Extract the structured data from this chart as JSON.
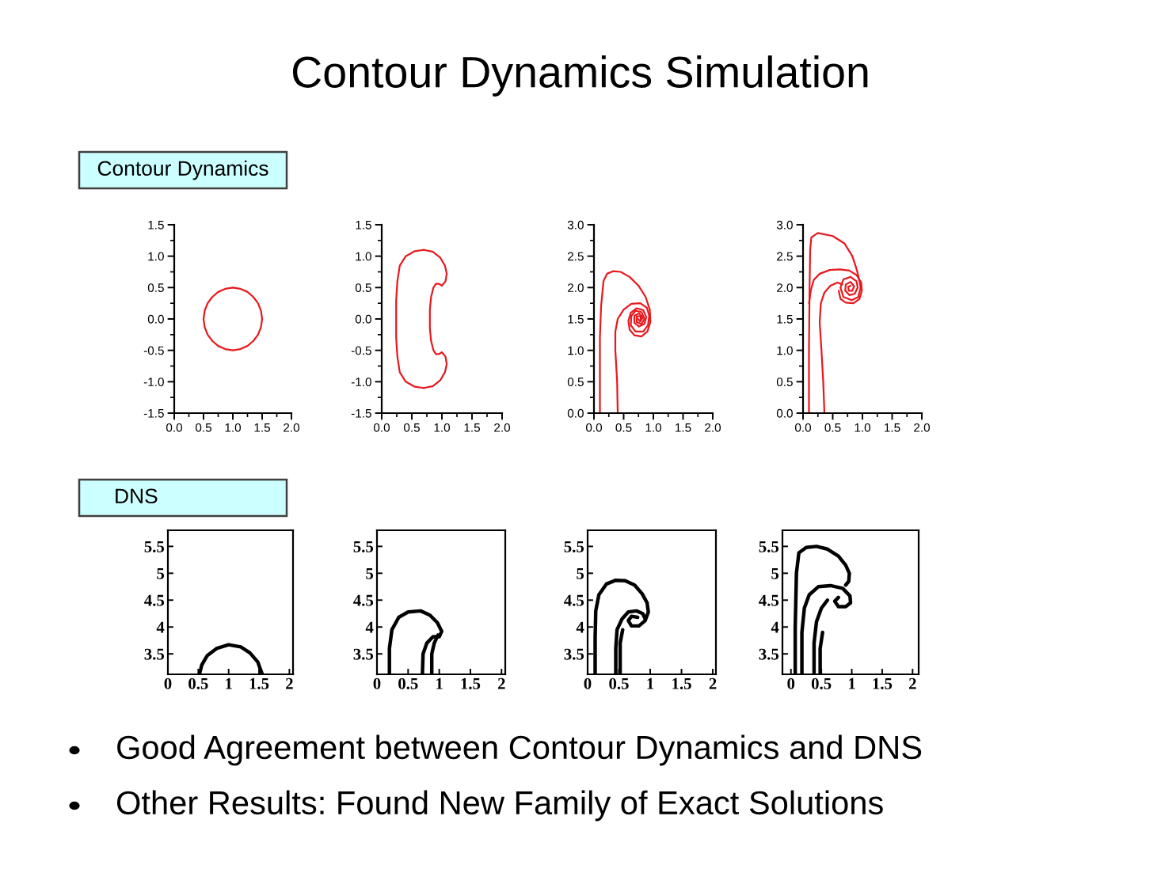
{
  "chart_data": [
    {
      "type": "other",
      "title": "Contour Dynamics Simulation"
    },
    {
      "type": "line",
      "title": "Contour Dynamics",
      "xlim": [
        0,
        2
      ],
      "ylim": [
        -1.5,
        1.5
      ],
      "xticks": [
        {
          "value": 0,
          "label": "0.0"
        },
        0.5,
        {
          "value": 1,
          "label": "1.0"
        },
        1.5,
        {
          "value": 2,
          "label": "2.0"
        }
      ],
      "yticks": [
        -1.5,
        {
          "value": -1,
          "label": "-1.0"
        },
        -0.5,
        {
          "value": 0,
          "label": "0.0"
        },
        0.5,
        {
          "value": 1,
          "label": "1.0"
        },
        1.5
      ],
      "series": [
        {
          "color": "#e8191e",
          "x": [
            1.5,
            1.48,
            1.43,
            1.35,
            1.25,
            1.13,
            1.0,
            0.87,
            0.75,
            0.65,
            0.57,
            0.52,
            0.5
          ],
          "values": [
            0,
            0.13,
            0.25,
            0.35,
            0.43,
            0.48,
            0.5,
            0.48,
            0.43,
            0.35,
            0.25,
            0.13,
            0
          ]
        },
        {
          "color": "#e8191e",
          "x": [
            0.5,
            0.52,
            0.57,
            0.65,
            0.75,
            0.87,
            1.0,
            1.13,
            1.25,
            1.35,
            1.43,
            1.48,
            1.5
          ],
          "values": [
            0,
            -0.13,
            -0.25,
            -0.35,
            -0.43,
            -0.48,
            -0.5,
            -0.48,
            -0.43,
            -0.35,
            -0.25,
            -0.13,
            0
          ]
        }
      ]
    },
    {
      "type": "line",
      "xlim": [
        0,
        2
      ],
      "ylim": [
        -1.5,
        1.5
      ],
      "xticks": [
        {
          "value": 0,
          "label": "0.0"
        },
        0.5,
        {
          "value": 1,
          "label": "1.0"
        },
        1.5,
        {
          "value": 2,
          "label": "2.0"
        }
      ],
      "yticks": [
        -1.5,
        {
          "value": -1,
          "label": "-1.0"
        },
        -0.5,
        {
          "value": 0,
          "label": "0.0"
        },
        0.5,
        {
          "value": 1,
          "label": "1.0"
        },
        1.5
      ],
      "series": [
        {
          "color": "#e8191e",
          "x": [
            0.7,
            0.85,
            0.97,
            1.05,
            1.08,
            1.06,
            1.0,
            0.95,
            0.9,
            0.86,
            0.82,
            0.8,
            0.8,
            0.8,
            0.82,
            0.86,
            0.9,
            0.95,
            1.0,
            1.06,
            1.08,
            1.05,
            0.97,
            0.85,
            0.7
          ],
          "values": [
            1.1,
            1.07,
            0.98,
            0.85,
            0.72,
            0.6,
            0.53,
            0.56,
            0.56,
            0.5,
            0.35,
            0.15,
            0,
            -0.15,
            -0.35,
            -0.5,
            -0.56,
            -0.56,
            -0.53,
            -0.6,
            -0.72,
            -0.85,
            -0.98,
            -1.07,
            -1.1
          ]
        },
        {
          "color": "#e8191e",
          "x": [
            0.7,
            0.55,
            0.4,
            0.3,
            0.26,
            0.24,
            0.24,
            0.24,
            0.26,
            0.3,
            0.4,
            0.55,
            0.7
          ],
          "values": [
            -1.1,
            -1.08,
            -1.0,
            -0.85,
            -0.6,
            -0.3,
            0,
            0.3,
            0.6,
            0.85,
            1.0,
            1.08,
            1.1
          ]
        }
      ]
    },
    {
      "type": "line",
      "xlim": [
        0,
        2
      ],
      "ylim": [
        0,
        3
      ],
      "xticks": [
        {
          "value": 0,
          "label": "0.0"
        },
        0.5,
        {
          "value": 1,
          "label": "1.0"
        },
        1.5,
        {
          "value": 2,
          "label": "2.0"
        }
      ],
      "yticks": [
        {
          "value": 0,
          "label": "0.0"
        },
        0.5,
        {
          "value": 1,
          "label": "1.0"
        },
        1.5,
        {
          "value": 2,
          "label": "2.0"
        },
        2.5,
        {
          "value": 3,
          "label": "3.0"
        }
      ],
      "series": [
        {
          "color": "#e8191e",
          "x": [
            0.1,
            0.1,
            0.1,
            0.12,
            0.16,
            0.22,
            0.32,
            0.45,
            0.6,
            0.75,
            0.87,
            0.94,
            0.95,
            0.9,
            0.8,
            0.68,
            0.6,
            0.58,
            0.62,
            0.72,
            0.83,
            0.88,
            0.85,
            0.76,
            0.68,
            0.68,
            0.76,
            0.82,
            0.78,
            0.74
          ],
          "values": [
            0,
            0.6,
            1.2,
            1.7,
            2.1,
            2.22,
            2.26,
            2.25,
            2.17,
            2.03,
            1.85,
            1.65,
            1.45,
            1.3,
            1.22,
            1.24,
            1.33,
            1.47,
            1.6,
            1.67,
            1.64,
            1.53,
            1.42,
            1.38,
            1.44,
            1.55,
            1.59,
            1.52,
            1.46,
            1.5
          ]
        },
        {
          "color": "#e8191e",
          "x": [
            0.4,
            0.39,
            0.36,
            0.36,
            0.4,
            0.5,
            0.63,
            0.78,
            0.89,
            0.93,
            0.91,
            0.83,
            0.7,
            0.62,
            0.63,
            0.7,
            0.8,
            0.85,
            0.8,
            0.72,
            0.72,
            0.79,
            0.78
          ],
          "values": [
            0,
            0.5,
            1.0,
            1.3,
            1.5,
            1.65,
            1.74,
            1.75,
            1.68,
            1.55,
            1.4,
            1.3,
            1.3,
            1.4,
            1.55,
            1.63,
            1.61,
            1.5,
            1.42,
            1.45,
            1.54,
            1.55,
            1.48
          ]
        }
      ]
    },
    {
      "type": "line",
      "xlim": [
        0,
        2
      ],
      "ylim": [
        0,
        3
      ],
      "xticks": [
        {
          "value": 0,
          "label": "0.0"
        },
        0.5,
        {
          "value": 1,
          "label": "1.0"
        },
        1.5,
        {
          "value": 2,
          "label": "2.0"
        }
      ],
      "yticks": [
        {
          "value": 0,
          "label": "0.0"
        },
        0.5,
        {
          "value": 1,
          "label": "1.0"
        },
        1.5,
        {
          "value": 2,
          "label": "2.0"
        },
        2.5,
        {
          "value": 3,
          "label": "3.0"
        }
      ],
      "series": [
        {
          "color": "#e8191e",
          "x": [
            0.1,
            0.1,
            0.11,
            0.12,
            0.14,
            0.25,
            0.5,
            0.7,
            0.83,
            0.9,
            0.94,
            0.97,
            0.93,
            0.82,
            0.68,
            0.63,
            0.68,
            0.8,
            0.9,
            0.92,
            0.87,
            0.78,
            0.71,
            0.72,
            0.8,
            0.86,
            0.83,
            0.77,
            0.76,
            0.8
          ],
          "values": [
            0,
            1.0,
            2.0,
            2.6,
            2.8,
            2.87,
            2.82,
            2.7,
            2.5,
            2.3,
            2.15,
            2.0,
            1.85,
            1.8,
            1.85,
            2.0,
            2.13,
            2.17,
            2.1,
            2.0,
            1.9,
            1.88,
            1.95,
            2.05,
            2.09,
            2.02,
            1.95,
            1.95,
            2.01,
            2.03
          ]
        },
        {
          "color": "#e8191e",
          "x": [
            0.1,
            0.13,
            0.18,
            0.28,
            0.45,
            0.62,
            0.78,
            0.9,
            0.98,
            0.99,
            0.95,
            0.85,
            0.72,
            0.63,
            0.6
          ],
          "values": [
            1.75,
            1.95,
            2.12,
            2.22,
            2.28,
            2.29,
            2.27,
            2.2,
            2.08,
            1.95,
            1.82,
            1.75,
            1.76,
            1.82,
            1.95
          ]
        },
        {
          "color": "#e8191e",
          "x": [
            0.36,
            0.34,
            0.31,
            0.28,
            0.3,
            0.36,
            0.46,
            0.58,
            0.66
          ],
          "values": [
            0,
            0.5,
            1.0,
            1.45,
            1.75,
            1.92,
            2.03,
            2.08,
            2.05
          ]
        }
      ]
    },
    {
      "type": "line",
      "title": "DNS",
      "xlim": [
        0,
        2.06
      ],
      "ylim": [
        3.12,
        5.8
      ],
      "xticks": [
        0,
        0.5,
        1,
        1.5,
        2
      ],
      "yticks": [
        3.5,
        4,
        4.5,
        5,
        5.5
      ],
      "series": [
        {
          "color": "#000000",
          "x": [
            0.52,
            0.56,
            0.65,
            0.8,
            1.0,
            1.2,
            1.35,
            1.48,
            1.55
          ],
          "values": [
            3.13,
            3.3,
            3.47,
            3.6,
            3.67,
            3.63,
            3.52,
            3.35,
            3.13
          ]
        }
      ]
    },
    {
      "type": "line",
      "xlim": [
        0,
        2.06
      ],
      "ylim": [
        3.12,
        5.8
      ],
      "xticks": [
        0,
        0.5,
        1,
        1.5,
        2
      ],
      "yticks": [
        3.5,
        4,
        4.5,
        5,
        5.5
      ],
      "series": [
        {
          "color": "#000000",
          "x": [
            0.2,
            0.2,
            0.24,
            0.35,
            0.5,
            0.7,
            0.85,
            0.97,
            1.04,
            1.0,
            0.9,
            0.8,
            0.74,
            0.73
          ],
          "values": [
            3.13,
            3.6,
            3.95,
            4.18,
            4.28,
            4.3,
            4.22,
            4.08,
            3.92,
            3.82,
            3.82,
            3.7,
            3.5,
            3.13
          ]
        },
        {
          "color": "#000000",
          "x": [
            0.88,
            0.88,
            0.92,
            0.98
          ],
          "values": [
            3.13,
            3.5,
            3.7,
            3.85
          ]
        }
      ]
    },
    {
      "type": "line",
      "xlim": [
        0,
        2.05
      ],
      "ylim": [
        3.12,
        5.8
      ],
      "xticks": [
        0,
        0.5,
        1,
        1.5,
        2
      ],
      "yticks": [
        3.5,
        4,
        4.5,
        5,
        5.5
      ],
      "series": [
        {
          "color": "#000000",
          "x": [
            0.12,
            0.12,
            0.13,
            0.18,
            0.3,
            0.45,
            0.6,
            0.75,
            0.87,
            0.95,
            0.97,
            0.92,
            0.82,
            0.7,
            0.65,
            0.7,
            0.8
          ],
          "values": [
            3.13,
            3.8,
            4.3,
            4.6,
            4.8,
            4.87,
            4.86,
            4.78,
            4.62,
            4.45,
            4.28,
            4.12,
            4.02,
            4.02,
            4.12,
            4.2,
            4.18
          ]
        },
        {
          "color": "#000000",
          "x": [
            0.45,
            0.45,
            0.47,
            0.55,
            0.65,
            0.78,
            0.88,
            0.92
          ],
          "values": [
            3.13,
            3.6,
            3.95,
            4.15,
            4.28,
            4.3,
            4.25,
            4.15
          ]
        },
        {
          "color": "#000000",
          "x": [
            0.52,
            0.52,
            0.56
          ],
          "values": [
            3.13,
            3.7,
            3.95
          ]
        }
      ]
    },
    {
      "type": "line",
      "xlim": [
        -0.14,
        2.1
      ],
      "ylim": [
        3.12,
        5.8
      ],
      "xticks": [
        0,
        0.5,
        1,
        1.5,
        2
      ],
      "yticks": [
        3.5,
        4,
        4.5,
        5,
        5.5
      ],
      "series": [
        {
          "color": "#000000",
          "x": [
            0.07,
            0.07,
            0.09,
            0.13,
            0.25,
            0.42,
            0.6,
            0.78,
            0.9,
            0.96,
            0.95,
            0.9
          ],
          "values": [
            3.13,
            4.0,
            5.0,
            5.38,
            5.48,
            5.5,
            5.45,
            5.32,
            5.15,
            5.0,
            4.85,
            4.78
          ]
        },
        {
          "color": "#000000",
          "x": [
            0.18,
            0.18,
            0.22,
            0.3,
            0.45,
            0.65,
            0.85,
            0.97,
            0.98,
            0.9,
            0.78,
            0.72,
            0.78
          ],
          "values": [
            3.13,
            3.9,
            4.35,
            4.6,
            4.75,
            4.77,
            4.72,
            4.58,
            4.45,
            4.38,
            4.38,
            4.48,
            4.55
          ]
        },
        {
          "color": "#000000",
          "x": [
            0.38,
            0.38,
            0.42,
            0.5,
            0.6
          ],
          "values": [
            3.13,
            3.7,
            4.1,
            4.35,
            4.5
          ]
        },
        {
          "color": "#000000",
          "x": [
            0.48,
            0.48,
            0.52
          ],
          "values": [
            3.13,
            3.6,
            3.9
          ]
        }
      ]
    },
    {
      "type": "other",
      "annotations": [
        "Good Agreement between Contour Dynamics and DNS",
        "Other Results: Found New Family of Exact Solutions"
      ]
    }
  ]
}
